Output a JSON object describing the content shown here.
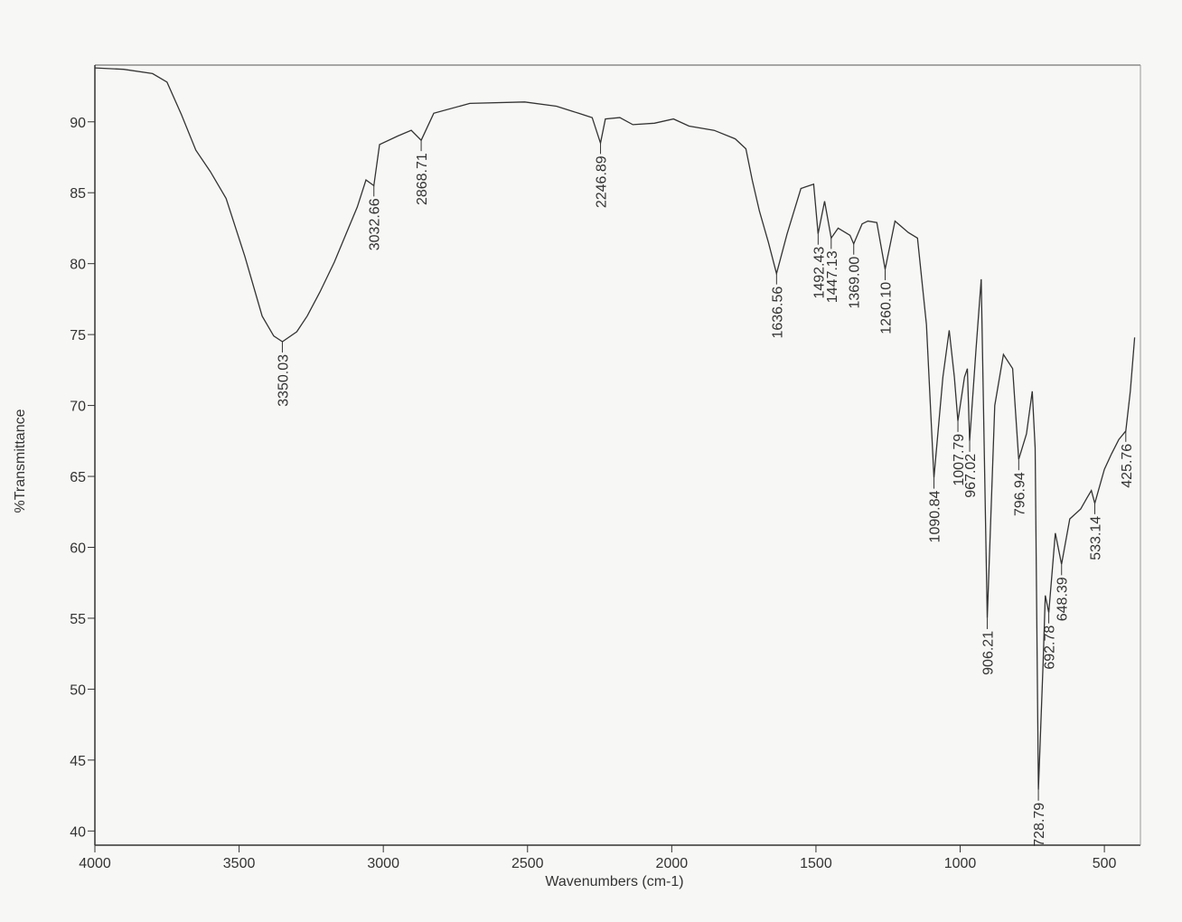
{
  "chart_data": {
    "type": "line",
    "xlabel": "Wavenumbers (cm-1)",
    "ylabel": "%Transmittance",
    "color": "#333333",
    "xlim": [
      4000,
      375
    ],
    "ylim": [
      39,
      94
    ],
    "xticks": [
      4000,
      3500,
      3000,
      2500,
      2000,
      1500,
      1000,
      500
    ],
    "yticks": [
      40,
      45,
      50,
      55,
      60,
      65,
      70,
      75,
      80,
      85,
      90
    ],
    "x": [
      4000,
      3900,
      3800,
      3750,
      3700,
      3650,
      3600,
      3545,
      3480,
      3420,
      3380,
      3350.03,
      3300,
      3264,
      3220,
      3170,
      3090,
      3060,
      3032.66,
      3013,
      2950,
      2903,
      2868.71,
      2825,
      2700,
      2510,
      2400,
      2323,
      2276,
      2246.89,
      2230,
      2180,
      2135,
      2060,
      1994,
      1940,
      1853,
      1780,
      1743,
      1721,
      1696,
      1665,
      1636.56,
      1600,
      1552,
      1508,
      1492.43,
      1470,
      1447.13,
      1423,
      1382,
      1369.0,
      1340,
      1320,
      1289,
      1260.1,
      1226,
      1180,
      1148,
      1117,
      1090.84,
      1060,
      1038,
      1020,
      1007.79,
      985,
      975,
      967.02,
      945,
      927,
      906.21,
      880,
      850,
      818,
      796.94,
      770,
      750,
      740,
      728.79,
      712,
      705,
      692.78,
      670,
      648.39,
      620,
      582,
      560,
      545,
      533.14,
      500,
      475,
      450,
      425.76,
      410,
      395
    ],
    "values": [
      93.8,
      93.7,
      93.4,
      92.8,
      90.5,
      88,
      86.5,
      84.6,
      80.5,
      76.3,
      74.9,
      74.5,
      75.2,
      76.3,
      78,
      80.1,
      84,
      85.9,
      85.5,
      88.4,
      89,
      89.4,
      88.7,
      90.6,
      91.3,
      91.4,
      91.1,
      90.6,
      90.3,
      88.5,
      90.2,
      90.3,
      89.8,
      89.9,
      90.2,
      89.7,
      89.4,
      88.8,
      88.1,
      85.9,
      83.7,
      81.5,
      79.3,
      82.1,
      85.3,
      85.6,
      82.1,
      84.4,
      81.8,
      82.5,
      82,
      81.4,
      82.8,
      83,
      82.9,
      79.6,
      83,
      82.2,
      81.8,
      75.7,
      64.9,
      72,
      75.3,
      72,
      68.9,
      72,
      72.6,
      67.5,
      74,
      78.9,
      55.0,
      70,
      73.6,
      72.6,
      66.2,
      68,
      71,
      67,
      42.9,
      52,
      56.6,
      55.4,
      61,
      58.8,
      62,
      62.7,
      63.5,
      64,
      63.1,
      65.5,
      66.6,
      67.6,
      68.2,
      71,
      74.8
    ],
    "peaks": {
      "x": [
        3350.03,
        3032.66,
        2868.71,
        2246.89,
        1636.56,
        1492.43,
        1447.13,
        1369.0,
        1260.1,
        1090.84,
        1007.79,
        967.02,
        906.21,
        796.94,
        728.79,
        692.78,
        648.39,
        533.14,
        425.76
      ],
      "y": [
        74.5,
        85.5,
        88.7,
        88.5,
        79.3,
        82.1,
        81.8,
        81.4,
        79.6,
        64.9,
        68.9,
        67.5,
        55.0,
        66.2,
        42.9,
        55.4,
        58.8,
        63.1,
        68.2
      ],
      "value_labels": [
        "3350.03",
        "3032.66",
        "2868.71",
        "2246.89",
        "1636.56",
        "1492.43",
        "1447.13",
        "1369.00",
        "1260.10",
        "1090.84",
        "1007.79",
        "967.02",
        "906.21",
        "796.94",
        "728.79",
        "692.78",
        "648.39",
        "533.14",
        "425.76"
      ]
    }
  }
}
